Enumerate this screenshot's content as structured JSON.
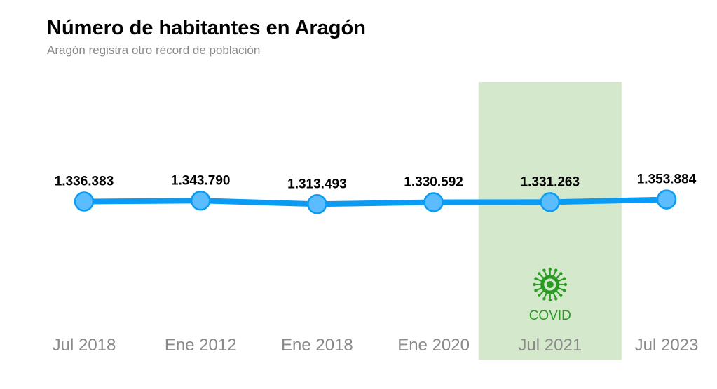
{
  "title": "Número de habitantes en Aragón",
  "subtitle": "Aragón registra otro récord de población",
  "colors": {
    "line": "#0a9cf5",
    "marker": "#5bbcff",
    "band": "#d4e8cc",
    "covid": "#2a9a22",
    "tick": "#8a8a8a"
  },
  "chart_data": {
    "type": "line",
    "title": "Número de habitantes en Aragón",
    "subtitle": "Aragón registra otro récord de población",
    "categories": [
      "Jul 2018",
      "Ene 2012",
      "Ene 2018",
      "Ene 2020",
      "Jul 2021",
      "Jul 2023"
    ],
    "values": [
      1336383,
      1343790,
      1313493,
      1330592,
      1331263,
      1353884
    ],
    "labels": [
      "1.336.383",
      "1.343.790",
      "1.313.493",
      "1.330.592",
      "1.331.263",
      "1.353.884"
    ],
    "ylim": [
      0,
      2000000
    ],
    "grid": false,
    "annotations": [
      {
        "label": "COVID",
        "icon": "virus-icon",
        "category": "Jul 2021"
      }
    ]
  }
}
